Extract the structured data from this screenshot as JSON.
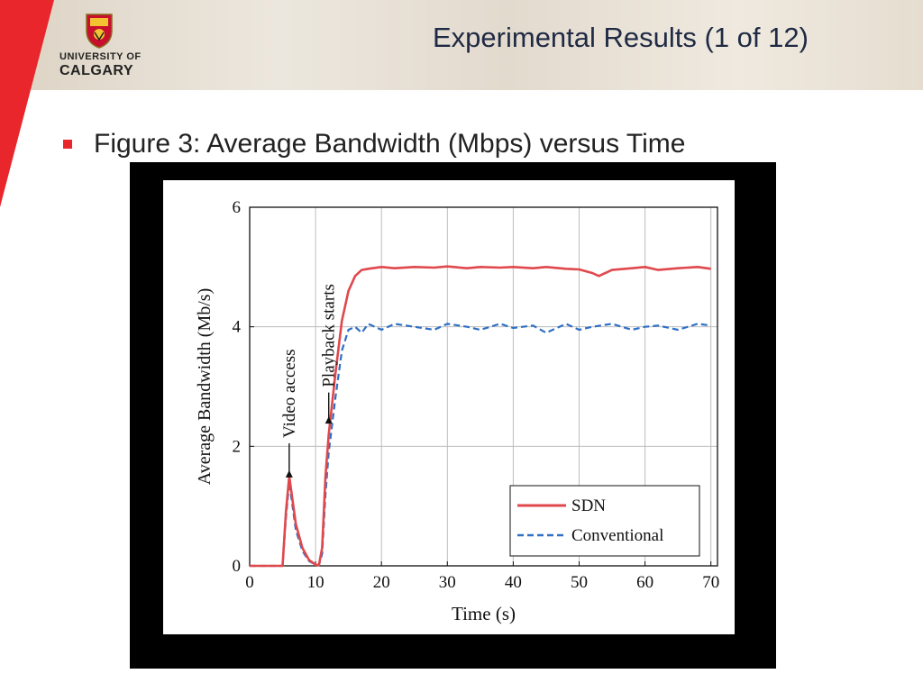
{
  "header": {
    "slide_title": "Experimental Results (1 of 12)",
    "logo_line1": "UNIVERSITY OF",
    "logo_line2": "CALGARY"
  },
  "bullet": {
    "text": "Figure 3: Average Bandwidth (Mbps) versus Time"
  },
  "colors": {
    "accent_red": "#e8262b",
    "sdn": "#e0484c",
    "conventional": "#2f6fc4"
  },
  "chart_data": {
    "type": "line",
    "xlabel": "Time (s)",
    "ylabel": "Average Bandwidth (Mb/s)",
    "xlim": [
      0,
      71
    ],
    "ylim": [
      0,
      6
    ],
    "xticks": [
      0,
      10,
      20,
      30,
      40,
      50,
      60,
      70
    ],
    "yticks": [
      0,
      2,
      4,
      6
    ],
    "grid": true,
    "legend_position": "bottom-right",
    "annotations": [
      {
        "text": "Video access",
        "x": 6
      },
      {
        "text": "Playback starts",
        "x": 12
      }
    ],
    "series": [
      {
        "name": "SDN",
        "style": "solid",
        "x": [
          0,
          5,
          5.5,
          6,
          7,
          8,
          9,
          10,
          10.5,
          11,
          11.5,
          12,
          13,
          14,
          15,
          16,
          17,
          18,
          20,
          22,
          25,
          28,
          30,
          33,
          35,
          38,
          40,
          43,
          45,
          48,
          50,
          52,
          53,
          55,
          58,
          60,
          62,
          65,
          68,
          70
        ],
        "y": [
          0,
          0,
          0.9,
          1.5,
          0.7,
          0.3,
          0.1,
          0.02,
          0.01,
          0.3,
          1.5,
          2.2,
          3.2,
          4.1,
          4.6,
          4.85,
          4.95,
          4.97,
          5.0,
          4.98,
          5.0,
          4.99,
          5.01,
          4.98,
          5.0,
          4.99,
          5.0,
          4.98,
          5.0,
          4.97,
          4.96,
          4.9,
          4.85,
          4.95,
          4.98,
          5.0,
          4.95,
          4.98,
          5.0,
          4.97
        ]
      },
      {
        "name": "Conventional",
        "style": "dashed",
        "x": [
          0,
          5,
          5.5,
          6,
          7,
          8,
          9,
          10,
          10.5,
          11,
          11.5,
          12,
          13,
          14,
          15,
          16,
          17,
          18,
          20,
          22,
          25,
          28,
          30,
          33,
          35,
          38,
          40,
          43,
          45,
          48,
          50,
          52,
          55,
          58,
          60,
          62,
          65,
          68,
          70
        ],
        "y": [
          0,
          0,
          0.8,
          1.4,
          0.6,
          0.25,
          0.08,
          0.02,
          0.01,
          0.2,
          1.2,
          1.9,
          2.8,
          3.6,
          3.95,
          4.0,
          3.9,
          4.05,
          3.95,
          4.05,
          4.0,
          3.95,
          4.05,
          4.0,
          3.95,
          4.05,
          3.98,
          4.02,
          3.9,
          4.05,
          3.95,
          4.0,
          4.05,
          3.95,
          4.0,
          4.02,
          3.95,
          4.05,
          4.02
        ]
      }
    ]
  }
}
